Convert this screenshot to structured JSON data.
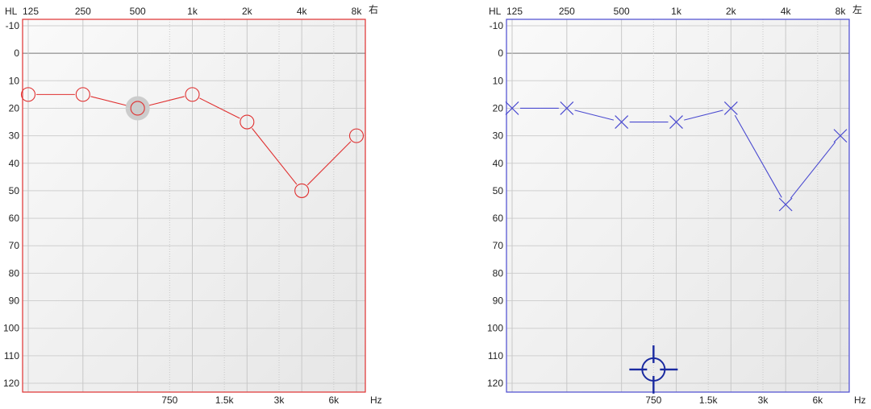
{
  "chart_data": [
    {
      "type": "line",
      "ear": "右",
      "corner_label": "HL",
      "unit": "Hz",
      "x_top_ticks": [
        "125",
        "250",
        "500",
        "1k",
        "2k",
        "4k",
        "8k"
      ],
      "x_bottom_ticks": [
        "750",
        "1.5k",
        "3k",
        "6k"
      ],
      "y_ticks": [
        "-10",
        "0",
        "10",
        "20",
        "30",
        "40",
        "50",
        "60",
        "70",
        "80",
        "90",
        "100",
        "110",
        "120"
      ],
      "ylim": [
        -10,
        120
      ],
      "y_inverted": true,
      "x_scale": "log2",
      "grid": true,
      "marker": "circle",
      "color": "#e03030",
      "selected_point_index": 2,
      "series": [
        {
          "x": [
            125,
            250,
            500,
            1000,
            2000,
            4000,
            8000
          ],
          "y": [
            15,
            15,
            20,
            15,
            25,
            50,
            30
          ]
        }
      ]
    },
    {
      "type": "line",
      "ear": "左",
      "corner_label": "HL",
      "unit": "Hz",
      "x_top_ticks": [
        "125",
        "250",
        "500",
        "1k",
        "2k",
        "4k",
        "8k"
      ],
      "x_bottom_ticks": [
        "750",
        "1.5k",
        "3k",
        "6k"
      ],
      "y_ticks": [
        "-10",
        "0",
        "10",
        "20",
        "30",
        "40",
        "50",
        "60",
        "70",
        "80",
        "90",
        "100",
        "110",
        "120"
      ],
      "ylim": [
        -10,
        120
      ],
      "y_inverted": true,
      "x_scale": "log2",
      "grid": true,
      "marker": "cross",
      "color": "#4a4ad0",
      "cursor": {
        "x": 750,
        "y": 115,
        "color": "#1a2aa0"
      },
      "series": [
        {
          "x": [
            125,
            250,
            500,
            1000,
            2000,
            4000,
            8000
          ],
          "y": [
            20,
            20,
            25,
            25,
            20,
            55,
            30
          ]
        }
      ]
    }
  ]
}
